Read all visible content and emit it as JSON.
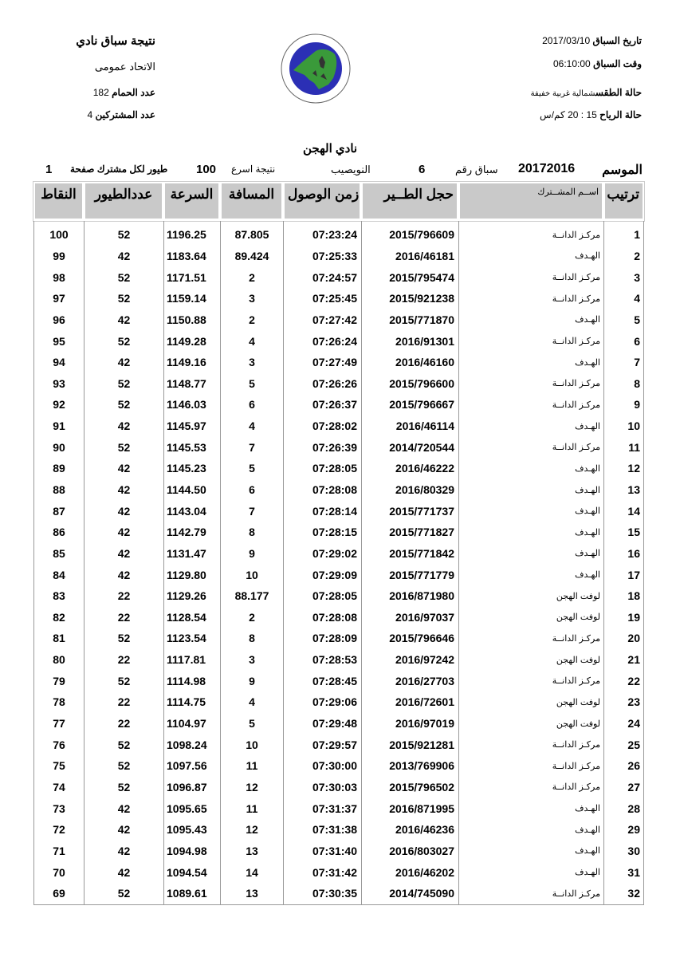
{
  "header_right": {
    "race_date_label": "تاريخ السباق",
    "race_date": "2017/03/10",
    "race_time_label": "وقت السباق",
    "race_time": "06:10:00",
    "weather_label": "حالة الطقس",
    "weather": "شمالية غربية خفيفة",
    "wind_label": "حالة الرياح",
    "wind": "15 : 20 كم/س"
  },
  "header_left": {
    "title": "نتيجة سباق نادي",
    "federation": "الاتحاد عمومى",
    "pigeons_label": "عدد الحمام",
    "pigeons": "182",
    "participants_label": "عدد المشتركين",
    "participants": "4"
  },
  "logo": {
    "text": "الاتحاد الكويتي لسباق حمام الزاجل / KUWAIT FEDERATION FOR RACING PIGEON",
    "colors": {
      "ring": "#2b2fb5",
      "land": "#3a9a3a"
    }
  },
  "club_name": "نادي الهجن",
  "info_line": {
    "season_label": "الموسم",
    "season": "20172016",
    "race_no_label": "سباق رقم",
    "race_no": "6",
    "location": "النويصيب",
    "fastest_label": "نتيجة اسرع",
    "fastest": "100",
    "per_participant_label": "طيور لكل مشترك صفحة",
    "page": "1"
  },
  "table": {
    "headers": [
      "ترتيب",
      "اســم المشــترك",
      "حجل الطــير",
      "زمن الوصول",
      "المسافة",
      "السرعة",
      "عددالطيور",
      "النقاط"
    ],
    "rows": [
      [
        "1",
        "مركـز الدانــة",
        "2015/796609",
        "07:23:24",
        "87.805",
        "1196.25",
        "52",
        "100"
      ],
      [
        "2",
        "الهـدف",
        "2016/46181",
        "07:25:33",
        "89.424",
        "1183.64",
        "42",
        "99"
      ],
      [
        "3",
        "مركـز الدانــة",
        "2015/795474",
        "07:24:57",
        "2",
        "1171.51",
        "52",
        "98"
      ],
      [
        "4",
        "مركـز الدانــة",
        "2015/921238",
        "07:25:45",
        "3",
        "1159.14",
        "52",
        "97"
      ],
      [
        "5",
        "الهـدف",
        "2015/771870",
        "07:27:42",
        "2",
        "1150.88",
        "42",
        "96"
      ],
      [
        "6",
        "مركـز الدانــة",
        "2016/91301",
        "07:26:24",
        "4",
        "1149.28",
        "52",
        "95"
      ],
      [
        "7",
        "الهـدف",
        "2016/46160",
        "07:27:49",
        "3",
        "1149.16",
        "42",
        "94"
      ],
      [
        "8",
        "مركـز الدانــة",
        "2015/796600",
        "07:26:26",
        "5",
        "1148.77",
        "52",
        "93"
      ],
      [
        "9",
        "مركـز الدانــة",
        "2015/796667",
        "07:26:37",
        "6",
        "1146.03",
        "52",
        "92"
      ],
      [
        "10",
        "الهـدف",
        "2016/46114",
        "07:28:02",
        "4",
        "1145.97",
        "42",
        "91"
      ],
      [
        "11",
        "مركـز الدانــة",
        "2014/720544",
        "07:26:39",
        "7",
        "1145.53",
        "52",
        "90"
      ],
      [
        "12",
        "الهـدف",
        "2016/46222",
        "07:28:05",
        "5",
        "1145.23",
        "42",
        "89"
      ],
      [
        "13",
        "الهـدف",
        "2016/80329",
        "07:28:08",
        "6",
        "1144.50",
        "42",
        "88"
      ],
      [
        "14",
        "الهـدف",
        "2015/771737",
        "07:28:14",
        "7",
        "1143.04",
        "42",
        "87"
      ],
      [
        "15",
        "الهـدف",
        "2015/771827",
        "07:28:15",
        "8",
        "1142.79",
        "42",
        "86"
      ],
      [
        "16",
        "الهـدف",
        "2015/771842",
        "07:29:02",
        "9",
        "1131.47",
        "42",
        "85"
      ],
      [
        "17",
        "الهـدف",
        "2015/771779",
        "07:29:09",
        "10",
        "1129.80",
        "42",
        "84"
      ],
      [
        "18",
        "لوفت الهجن",
        "2016/871980",
        "07:28:05",
        "88.177",
        "1129.26",
        "22",
        "83"
      ],
      [
        "19",
        "لوفت الهجن",
        "2016/97037",
        "07:28:08",
        "2",
        "1128.54",
        "22",
        "82"
      ],
      [
        "20",
        "مركـز الدانــة",
        "2015/796646",
        "07:28:09",
        "8",
        "1123.54",
        "52",
        "81"
      ],
      [
        "21",
        "لوفت الهجن",
        "2016/97242",
        "07:28:53",
        "3",
        "1117.81",
        "22",
        "80"
      ],
      [
        "22",
        "مركـز الدانــة",
        "2016/27703",
        "07:28:45",
        "9",
        "1114.98",
        "52",
        "79"
      ],
      [
        "23",
        "لوفت الهجن",
        "2016/72601",
        "07:29:06",
        "4",
        "1114.75",
        "22",
        "78"
      ],
      [
        "24",
        "لوفت الهجن",
        "2016/97019",
        "07:29:48",
        "5",
        "1104.97",
        "22",
        "77"
      ],
      [
        "25",
        "مركـز الدانــة",
        "2015/921281",
        "07:29:57",
        "10",
        "1098.24",
        "52",
        "76"
      ],
      [
        "26",
        "مركـز الدانــة",
        "2013/769906",
        "07:30:00",
        "11",
        "1097.56",
        "52",
        "75"
      ],
      [
        "27",
        "مركـز الدانــة",
        "2015/796502",
        "07:30:03",
        "12",
        "1096.87",
        "52",
        "74"
      ],
      [
        "28",
        "الهـدف",
        "2016/871995",
        "07:31:37",
        "11",
        "1095.65",
        "42",
        "73"
      ],
      [
        "29",
        "الهـدف",
        "2016/46236",
        "07:31:38",
        "12",
        "1095.43",
        "42",
        "72"
      ],
      [
        "30",
        "الهـدف",
        "2016/803027",
        "07:31:40",
        "13",
        "1094.98",
        "42",
        "71"
      ],
      [
        "31",
        "الهـدف",
        "2016/46202",
        "07:31:42",
        "14",
        "1094.54",
        "42",
        "70"
      ],
      [
        "32",
        "مركـز الدانــة",
        "2014/745090",
        "07:30:35",
        "13",
        "1089.61",
        "52",
        "69"
      ]
    ]
  }
}
